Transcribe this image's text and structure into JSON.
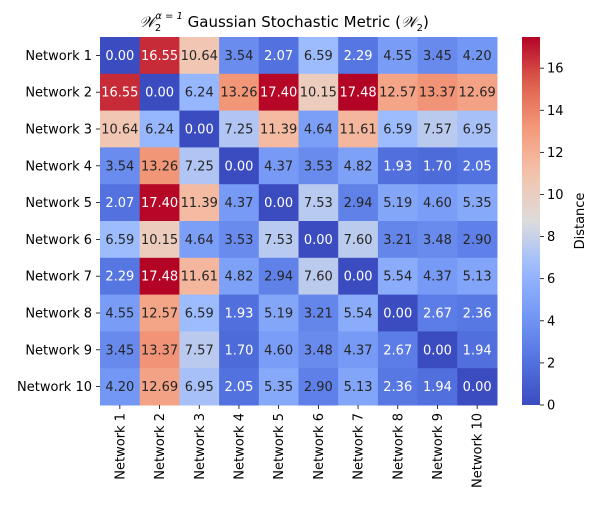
{
  "chart_data": {
    "type": "heatmap",
    "title_base": "𝒲",
    "title_sub": "2",
    "title_sup": "α = 1",
    "title_text": " Gaussian Stochastic Metric (",
    "title_close": ")",
    "rows": [
      "Network 1",
      "Network 2",
      "Network 3",
      "Network 4",
      "Network 5",
      "Network 6",
      "Network 7",
      "Network 8",
      "Network 9",
      "Network 10"
    ],
    "cols": [
      "Network 1",
      "Network 2",
      "Network 3",
      "Network 4",
      "Network 5",
      "Network 6",
      "Network 7",
      "Network 8",
      "Network 9",
      "Network 10"
    ],
    "values": [
      [
        0.0,
        16.55,
        10.64,
        3.54,
        2.07,
        6.59,
        2.29,
        4.55,
        3.45,
        4.2
      ],
      [
        16.55,
        0.0,
        6.24,
        13.26,
        17.4,
        10.15,
        17.48,
        12.57,
        13.37,
        12.69
      ],
      [
        10.64,
        6.24,
        0.0,
        7.25,
        11.39,
        4.64,
        11.61,
        6.59,
        7.57,
        6.95
      ],
      [
        3.54,
        13.26,
        7.25,
        0.0,
        4.37,
        3.53,
        4.82,
        1.93,
        1.7,
        2.05
      ],
      [
        2.07,
        17.4,
        11.39,
        4.37,
        0.0,
        7.53,
        2.94,
        5.19,
        4.6,
        5.35
      ],
      [
        6.59,
        10.15,
        4.64,
        3.53,
        7.53,
        0.0,
        7.6,
        3.21,
        3.48,
        2.9
      ],
      [
        2.29,
        17.48,
        11.61,
        4.82,
        2.94,
        7.6,
        0.0,
        5.54,
        4.37,
        5.13
      ],
      [
        4.55,
        12.57,
        6.59,
        1.93,
        5.19,
        3.21,
        5.54,
        0.0,
        2.67,
        2.36
      ],
      [
        3.45,
        13.37,
        7.57,
        1.7,
        4.6,
        3.48,
        4.37,
        2.67,
        0.0,
        1.94
      ],
      [
        4.2,
        12.69,
        6.95,
        2.05,
        5.35,
        2.9,
        5.13,
        2.36,
        1.94,
        0.0
      ]
    ],
    "colorbar": {
      "label": "Distance",
      "min": 0,
      "max": 17.48,
      "ticks": [
        0,
        2,
        4,
        6,
        8,
        10,
        12,
        14,
        16
      ],
      "colormap": "coolwarm"
    }
  }
}
